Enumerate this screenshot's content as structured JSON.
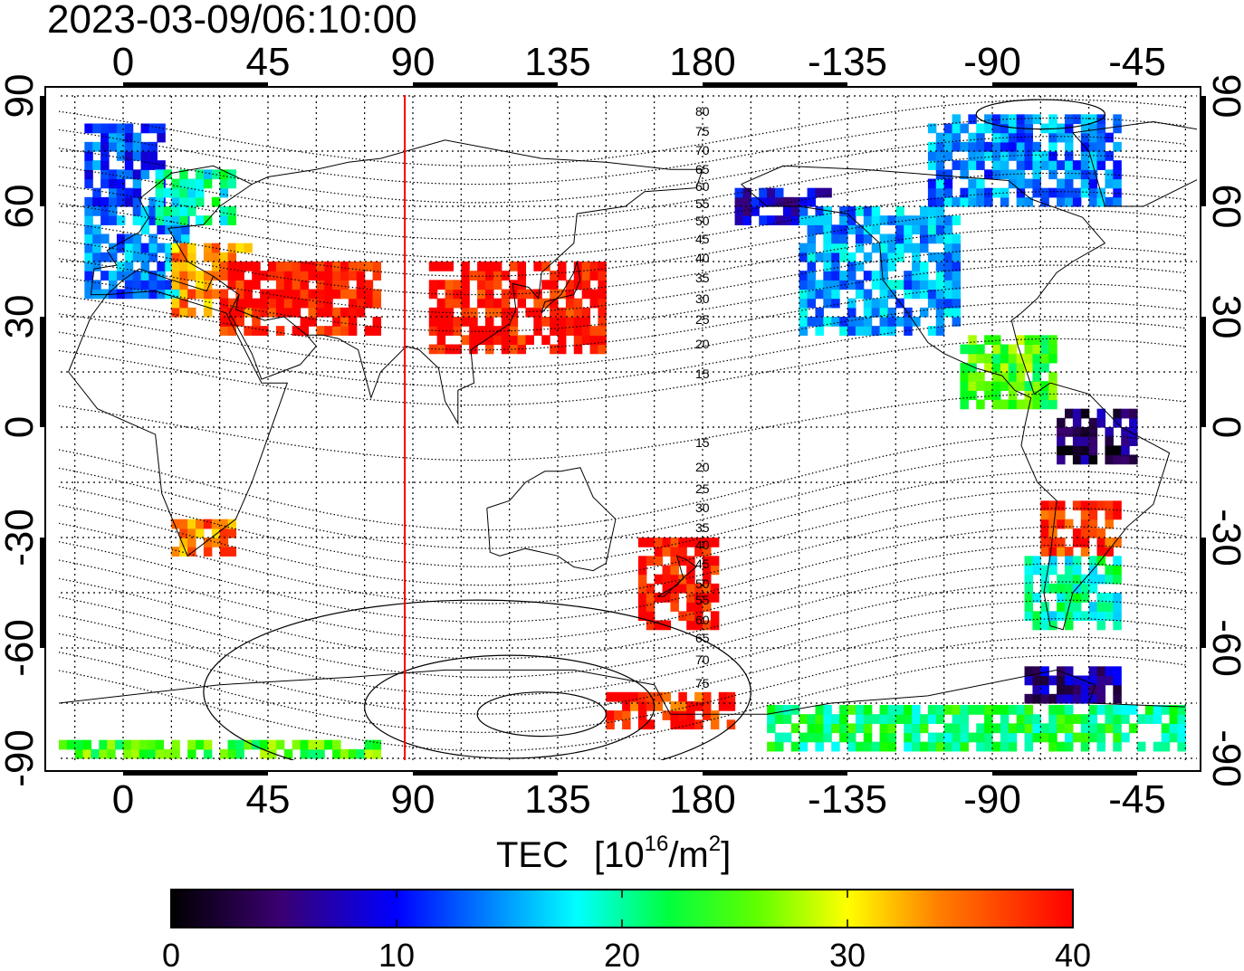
{
  "title": "2023-03-09/06:10:00",
  "map": {
    "projection": "equirectangular",
    "lon_range": [
      -20,
      330
    ],
    "lat_range": [
      -90,
      90
    ],
    "lon_ticks_labels": [
      "0",
      "45",
      "90",
      "135",
      "180",
      "-135",
      "-90",
      "-45"
    ],
    "lon_ticks_values": [
      0,
      45,
      90,
      135,
      180,
      225,
      270,
      315
    ],
    "lat_ticks_labels": [
      "90",
      "60",
      "30",
      "0",
      "-30",
      "-60",
      "-90"
    ],
    "lat_ticks_values": [
      90,
      60,
      30,
      0,
      -30,
      -60,
      -90
    ],
    "gridlines": "dotted every 15 degrees",
    "subsolar_meridian_lon": 87.5,
    "subsolar_meridian_color": "#ff0000",
    "magnetic_latitude_contour_labels_north": [
      "80",
      "75",
      "70",
      "65",
      "60",
      "55",
      "50",
      "45",
      "40",
      "35",
      "30",
      "25",
      "20",
      "15"
    ],
    "magnetic_latitude_contour_labels_south": [
      "15",
      "20",
      "25",
      "30",
      "35",
      "40",
      "45",
      "50",
      "55",
      "60",
      "65",
      "70",
      "75"
    ]
  },
  "colorbar": {
    "title": "TEC",
    "unit_base": "[10",
    "unit_exp": "16",
    "unit_mid": "/m",
    "unit_exp2": "2",
    "unit_end": "]",
    "min": 0,
    "max": 40,
    "tick_labels": [
      "0",
      "10",
      "20",
      "30",
      "40"
    ],
    "colormap": [
      "#000000",
      "#3a0070",
      "#0000ff",
      "#00ffff",
      "#00ff00",
      "#ffff00",
      "#ff8000",
      "#ff0000"
    ]
  },
  "chart_data": {
    "type": "heatmap",
    "title": "2023-03-09/06:10:00",
    "variable": "TEC",
    "units": "10^16/m^2",
    "value_range": [
      0,
      40
    ],
    "regions": [
      {
        "lon_range": [
          -12,
          12
        ],
        "lat_range": [
          60,
          82
        ],
        "tec": 12
      },
      {
        "lon_range": [
          -12,
          20
        ],
        "lat_range": [
          35,
          60
        ],
        "tec": 14
      },
      {
        "lon_range": [
          10,
          35
        ],
        "lat_range": [
          55,
          68
        ],
        "tec": 20
      },
      {
        "lon_range": [
          15,
          40
        ],
        "lat_range": [
          30,
          50
        ],
        "tec": 34
      },
      {
        "lon_range": [
          30,
          80
        ],
        "lat_range": [
          25,
          45
        ],
        "tec": 40
      },
      {
        "lon_range": [
          95,
          150
        ],
        "lat_range": [
          20,
          45
        ],
        "tec": 40
      },
      {
        "lon_range": [
          160,
          185
        ],
        "lat_range": [
          -55,
          -30
        ],
        "tec": 40
      },
      {
        "lon_range": [
          15,
          35
        ],
        "lat_range": [
          -35,
          -25
        ],
        "tec": 35
      },
      {
        "lon_range": [
          190,
          220
        ],
        "lat_range": [
          55,
          65
        ],
        "tec": 8
      },
      {
        "lon_range": [
          210,
          260
        ],
        "lat_range": [
          25,
          60
        ],
        "tec": 15
      },
      {
        "lon_range": [
          250,
          310
        ],
        "lat_range": [
          60,
          85
        ],
        "tec": 14
      },
      {
        "lon_range": [
          260,
          290
        ],
        "lat_range": [
          5,
          25
        ],
        "tec": 25
      },
      {
        "lon_range": [
          285,
          310
        ],
        "lat_range": [
          -35,
          -20
        ],
        "tec": 38
      },
      {
        "lon_range": [
          290,
          315
        ],
        "lat_range": [
          -10,
          5
        ],
        "tec": 4
      },
      {
        "lon_range": [
          280,
          310
        ],
        "lat_range": [
          -55,
          -35
        ],
        "tec": 20
      },
      {
        "lon_range": [
          280,
          310
        ],
        "lat_range": [
          -75,
          -65
        ],
        "tec": 6
      },
      {
        "lon_range": [
          150,
          190
        ],
        "lat_range": [
          -82,
          -72
        ],
        "tec": 38
      },
      {
        "lon_range": [
          200,
          330
        ],
        "lat_range": [
          -88,
          -76
        ],
        "tec": 22
      },
      {
        "lon_range": [
          -20,
          80
        ],
        "lat_range": [
          -90,
          -85
        ],
        "tec": 25
      }
    ]
  }
}
